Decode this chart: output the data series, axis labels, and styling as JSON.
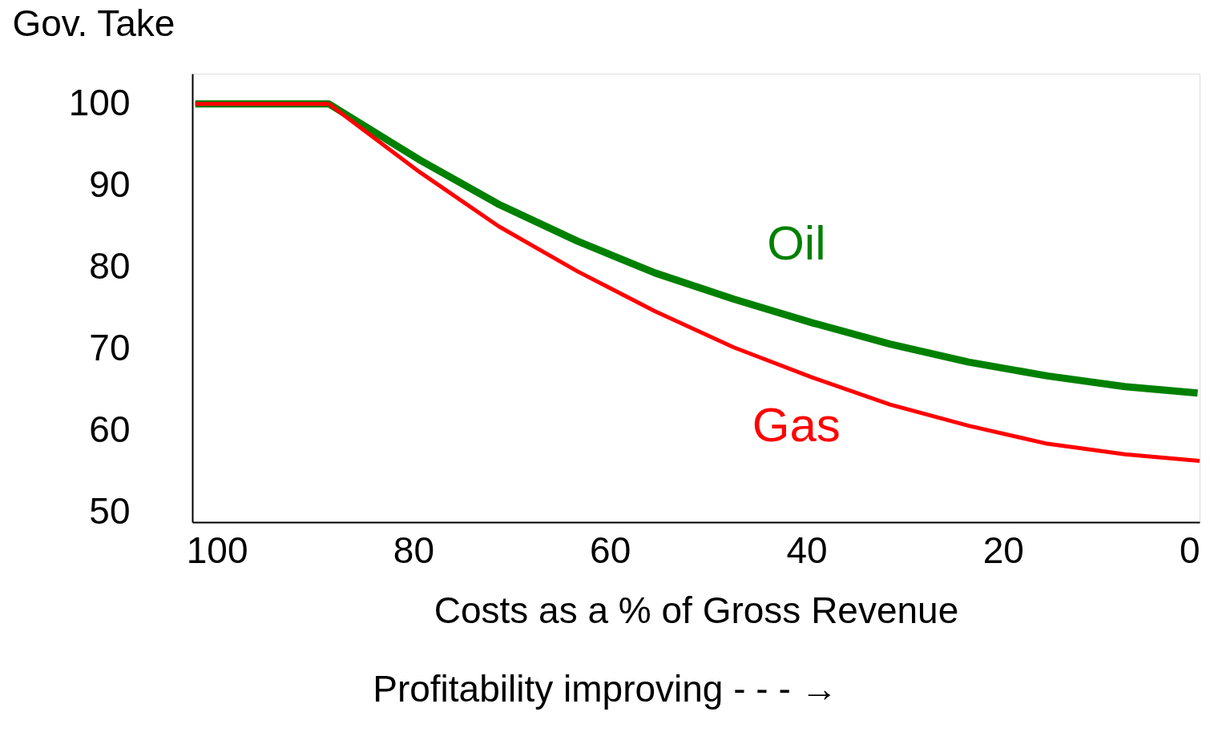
{
  "chart_data": {
    "type": "line",
    "xlabel": "Costs as a % of Gross Revenue",
    "ylabel": "Gov. Take",
    "annotations": [
      "Profitability improving  - - - →"
    ],
    "xlim": [
      102.5,
      0
    ],
    "xticks": [
      100,
      80,
      60,
      40,
      20,
      0
    ],
    "ylim": [
      48.8,
      103.7
    ],
    "yticks": [
      50,
      60,
      70,
      80,
      90,
      100
    ],
    "grid": false,
    "legend": false,
    "series": [
      {
        "name": "Oil",
        "color": "#008000",
        "x": [
          102.2,
          88.6,
          79.3,
          71.3,
          63.3,
          55.4,
          47.4,
          39.4,
          31.5,
          23.5,
          15.5,
          7.6,
          0.2
        ],
        "values": [
          100,
          100,
          93.1,
          87.7,
          83.2,
          79.3,
          76.1,
          73.2,
          70.6,
          68.4,
          66.7,
          65.4,
          64.6
        ]
      },
      {
        "name": "Gas",
        "color": "#ff0000",
        "x": [
          102.2,
          88.6,
          79.3,
          71.3,
          63.3,
          55.4,
          47.4,
          39.4,
          31.5,
          23.5,
          15.5,
          7.6,
          0
        ],
        "values": [
          100,
          100,
          91.6,
          85.0,
          79.5,
          74.6,
          70.2,
          66.5,
          63.2,
          60.6,
          58.4,
          57.1,
          56.3
        ]
      }
    ]
  }
}
